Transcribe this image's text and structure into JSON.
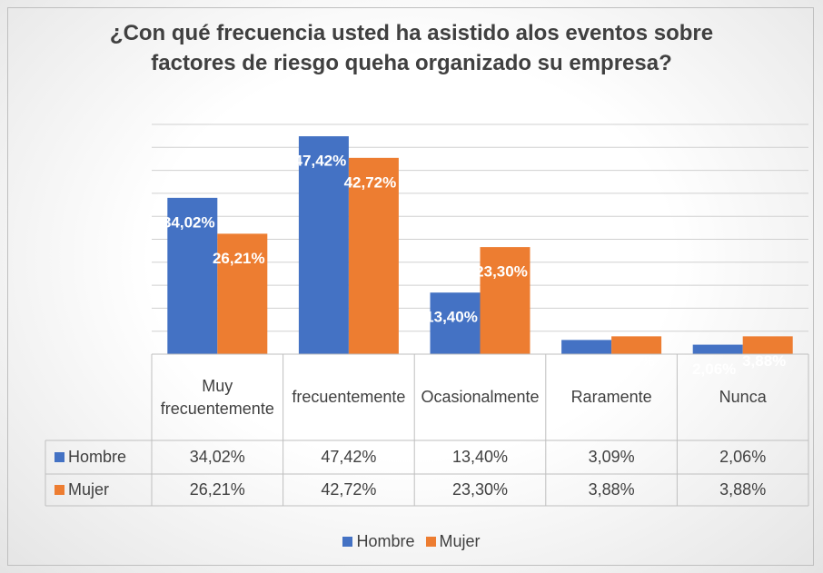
{
  "chart_data": {
    "type": "bar",
    "title": "¿Con qué frecuencia usted ha asistido alos eventos sobre factores de riesgo queha organizado su empresa?",
    "categories": [
      "Muy frecuentemente",
      "frecuentemente",
      "Ocasionalmente",
      "Raramente",
      "Nunca"
    ],
    "series": [
      {
        "name": "Hombre",
        "color": "#4472c4",
        "values": [
          34.02,
          47.42,
          13.4,
          3.09,
          2.06
        ],
        "value_labels": [
          "34,02%",
          "47,42%",
          "13,40%",
          "3,09%",
          "2,06%"
        ]
      },
      {
        "name": "Mujer",
        "color": "#ed7d31",
        "values": [
          26.21,
          42.72,
          23.3,
          3.88,
          3.88
        ],
        "value_labels": [
          "26,21%",
          "42,72%",
          "23,30%",
          "3,88%",
          "3,88%"
        ]
      }
    ],
    "ylim": [
      0,
      50
    ],
    "yticks": [
      0,
      5,
      10,
      15,
      20,
      25,
      30,
      35,
      40,
      45,
      50
    ],
    "grid": true,
    "data_table": true,
    "legend": "bottom"
  }
}
